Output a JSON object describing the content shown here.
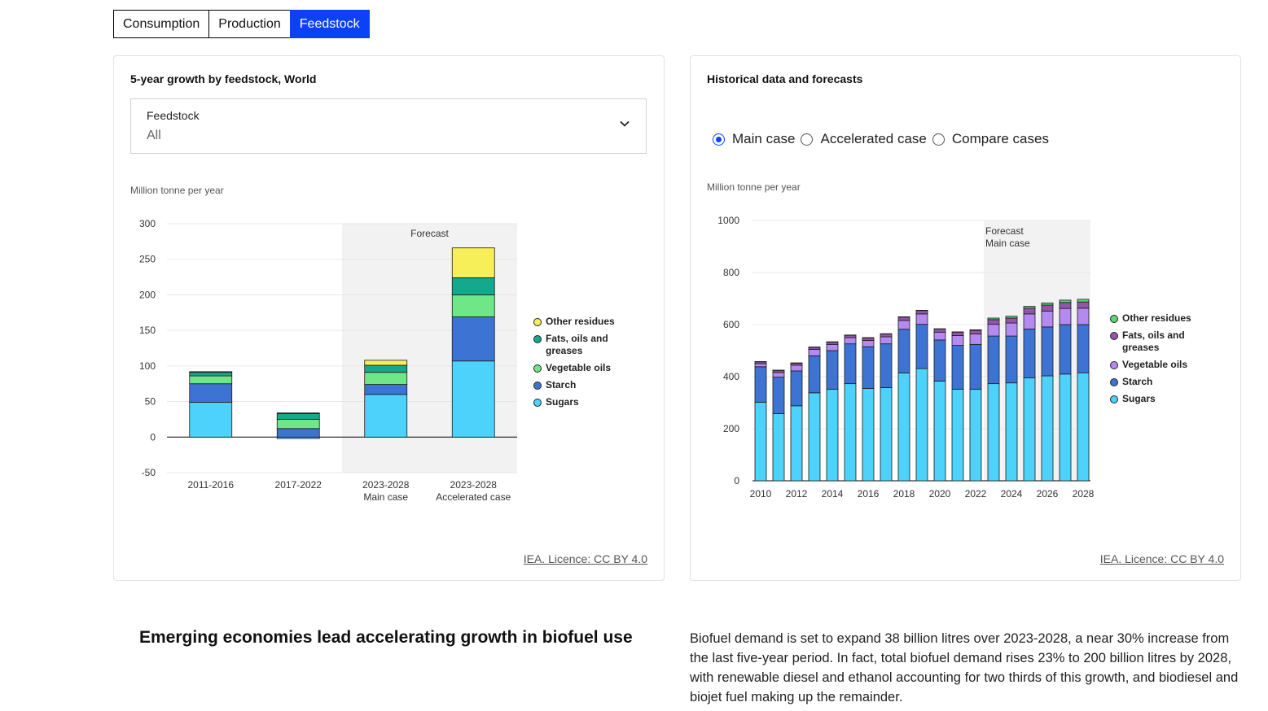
{
  "tabs": [
    {
      "label": "Consumption",
      "active": false
    },
    {
      "label": "Production",
      "active": false
    },
    {
      "label": "Feedstock",
      "active": true
    }
  ],
  "left_card": {
    "title": "5-year growth by feedstock, World",
    "dropdown": {
      "label": "Feedstock",
      "value": "All"
    },
    "unit": "Million tonne per year",
    "forecast_label": "Forecast",
    "licence": "IEA. Licence: CC BY 4.0"
  },
  "right_card": {
    "title": "Historical data and forecasts",
    "radios": [
      {
        "label": "Main case",
        "selected": true
      },
      {
        "label": "Accelerated case",
        "selected": false
      },
      {
        "label": "Compare cases",
        "selected": false
      }
    ],
    "unit": "Million tonne per year",
    "forecast_label": [
      "Forecast",
      "Main case"
    ],
    "licence": "IEA. Licence: CC BY 4.0"
  },
  "legend": [
    {
      "name": "Other residues",
      "color": "#f7ef5a"
    },
    {
      "name": "Fats, oils and greases",
      "color": "#14a88c"
    },
    {
      "name": "Vegetable oils",
      "color": "#6fe688"
    },
    {
      "name": "Starch",
      "color": "#3d74d4"
    },
    {
      "name": "Sugars",
      "color": "#4dd2fb"
    }
  ],
  "legend_right": [
    {
      "name": "Other residues",
      "color": "#5bd67a"
    },
    {
      "name": "Fats, oils and greases",
      "color": "#9156a8"
    },
    {
      "name": "Vegetable oils",
      "color": "#b58af0"
    },
    {
      "name": "Starch",
      "color": "#3d74d4"
    },
    {
      "name": "Sugars",
      "color": "#4dd2fb"
    }
  ],
  "chart_data": [
    {
      "type": "bar",
      "stacked": true,
      "title": "5-year growth by feedstock, World",
      "ylabel": "Million tonne per year",
      "ylim": [
        -50,
        300
      ],
      "yticks": [
        300,
        250,
        200,
        150,
        100,
        50,
        0,
        -50
      ],
      "categories": [
        [
          "2011-2016"
        ],
        [
          "2017-2022"
        ],
        [
          "2023-2028",
          "Main case"
        ],
        [
          "2023-2028",
          "Accelerated case"
        ]
      ],
      "forecast_from_index": 2,
      "series": [
        {
          "name": "Sugars",
          "values": [
            49,
            -2,
            60,
            107
          ]
        },
        {
          "name": "Starch",
          "values": [
            26,
            12,
            14,
            62
          ]
        },
        {
          "name": "Vegetable oils",
          "values": [
            11,
            13,
            17,
            31
          ]
        },
        {
          "name": "Fats, oils and greases",
          "values": [
            5,
            8,
            10,
            24
          ]
        },
        {
          "name": "Other residues",
          "values": [
            1,
            1,
            7,
            42
          ]
        }
      ],
      "grid": true,
      "legend": "right"
    },
    {
      "type": "bar",
      "stacked": true,
      "title": "Historical data and forecasts",
      "ylabel": "Million tonne per year",
      "ylim": [
        0,
        1000
      ],
      "yticks": [
        1000,
        800,
        600,
        400,
        200,
        0
      ],
      "x": [
        2010,
        2011,
        2012,
        2013,
        2014,
        2015,
        2016,
        2017,
        2018,
        2019,
        2020,
        2021,
        2022,
        2023,
        2024,
        2025,
        2026,
        2027,
        2028
      ],
      "xticks": [
        2010,
        2012,
        2014,
        2016,
        2018,
        2020,
        2022,
        2024,
        2026,
        2028
      ],
      "forecast_from": 2023,
      "series": [
        {
          "name": "Sugars",
          "values": [
            302,
            258,
            288,
            338,
            352,
            373,
            355,
            358,
            414,
            431,
            383,
            352,
            352,
            373,
            376,
            395,
            403,
            410,
            415
          ]
        },
        {
          "name": "Starch",
          "values": [
            136,
            140,
            134,
            142,
            148,
            153,
            160,
            168,
            168,
            170,
            158,
            168,
            172,
            183,
            180,
            188,
            188,
            190,
            185
          ]
        },
        {
          "name": "Vegetable oils",
          "values": [
            12,
            18,
            22,
            25,
            24,
            24,
            24,
            27,
            34,
            40,
            30,
            38,
            40,
            45,
            50,
            58,
            61,
            62,
            63
          ]
        },
        {
          "name": "Fats, oils and greases",
          "values": [
            7,
            8,
            8,
            8,
            9,
            9,
            10,
            11,
            13,
            13,
            12,
            13,
            14,
            18,
            19,
            22,
            23,
            23,
            24
          ]
        },
        {
          "name": "Other residues",
          "values": [
            1,
            1,
            1,
            1,
            1,
            1,
            1,
            1,
            1,
            1,
            1,
            1,
            2,
            6,
            7,
            7,
            8,
            9,
            10
          ]
        }
      ],
      "grid": true,
      "legend": "right"
    }
  ],
  "article": {
    "headline": "Emerging economies lead accelerating growth in biofuel use",
    "paragraph": "Biofuel demand is set to expand 38 billion litres over 2023-2028, a near 30% increase from the last five-year period. In fact, total biofuel demand rises 23% to 200 billion litres by 2028, with renewable diesel and ethanol accounting for two thirds of this growth, and biodiesel and biojet fuel making up the remainder."
  }
}
